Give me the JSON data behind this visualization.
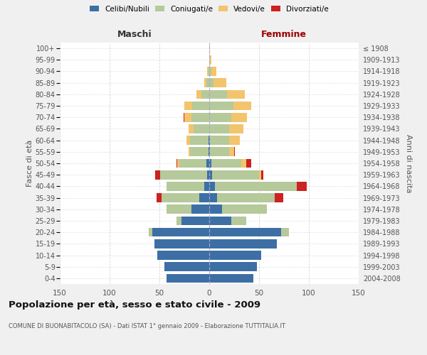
{
  "age_groups": [
    "0-4",
    "5-9",
    "10-14",
    "15-19",
    "20-24",
    "25-29",
    "30-34",
    "35-39",
    "40-44",
    "45-49",
    "50-54",
    "55-59",
    "60-64",
    "65-69",
    "70-74",
    "75-79",
    "80-84",
    "85-89",
    "90-94",
    "95-99",
    "100+"
  ],
  "birth_years": [
    "2004-2008",
    "1999-2003",
    "1994-1998",
    "1989-1993",
    "1984-1988",
    "1979-1983",
    "1974-1978",
    "1969-1973",
    "1964-1968",
    "1959-1963",
    "1954-1958",
    "1949-1953",
    "1944-1948",
    "1939-1943",
    "1934-1938",
    "1929-1933",
    "1924-1928",
    "1919-1923",
    "1914-1918",
    "1909-1913",
    "≤ 1908"
  ],
  "colors": {
    "celibi": "#3d6fa5",
    "coniugati": "#b5c99a",
    "vedovi": "#f2c46d",
    "divorziati": "#cc2222"
  },
  "maschi": {
    "celibi": [
      43,
      45,
      52,
      55,
      57,
      28,
      18,
      10,
      5,
      2,
      3,
      1,
      1,
      0,
      0,
      0,
      0,
      0,
      0,
      0,
      0
    ],
    "coniugati": [
      0,
      0,
      0,
      0,
      4,
      5,
      25,
      38,
      38,
      47,
      27,
      18,
      18,
      16,
      18,
      17,
      8,
      3,
      1,
      0,
      0
    ],
    "vedovi": [
      0,
      0,
      0,
      0,
      0,
      0,
      0,
      0,
      0,
      0,
      2,
      2,
      4,
      5,
      7,
      8,
      5,
      2,
      1,
      0,
      0
    ],
    "divorziati": [
      0,
      0,
      0,
      0,
      0,
      0,
      0,
      5,
      0,
      5,
      1,
      0,
      0,
      0,
      1,
      0,
      0,
      0,
      0,
      0,
      0
    ]
  },
  "femmine": {
    "celibi": [
      44,
      48,
      52,
      68,
      72,
      22,
      13,
      8,
      6,
      3,
      2,
      1,
      1,
      0,
      0,
      0,
      0,
      0,
      0,
      0,
      0
    ],
    "coniugati": [
      0,
      0,
      0,
      0,
      8,
      15,
      45,
      58,
      82,
      47,
      30,
      19,
      19,
      20,
      22,
      24,
      18,
      4,
      2,
      1,
      0
    ],
    "vedovi": [
      0,
      0,
      0,
      0,
      0,
      0,
      0,
      0,
      0,
      2,
      5,
      5,
      11,
      14,
      16,
      18,
      18,
      13,
      5,
      1,
      1
    ],
    "divorziati": [
      0,
      0,
      0,
      0,
      0,
      0,
      0,
      8,
      10,
      2,
      5,
      1,
      0,
      0,
      0,
      0,
      0,
      0,
      0,
      0,
      0
    ]
  },
  "xlim": 150,
  "title": "Popolazione per età, sesso e stato civile - 2009",
  "subtitle": "COMUNE DI BUONABITACOLO (SA) - Dati ISTAT 1° gennaio 2009 - Elaborazione TUTTITALIA.IT",
  "xlabel_left": "Maschi",
  "xlabel_right": "Femmine",
  "ylabel_left": "Fasce di età",
  "ylabel_right": "Anni di nascita",
  "legend_labels": [
    "Celibi/Nubili",
    "Coniugati/e",
    "Vedovi/e",
    "Divorziati/e"
  ],
  "bg_color": "#f0f0f0",
  "plot_bg": "#ffffff",
  "grid_color": "#cccccc"
}
